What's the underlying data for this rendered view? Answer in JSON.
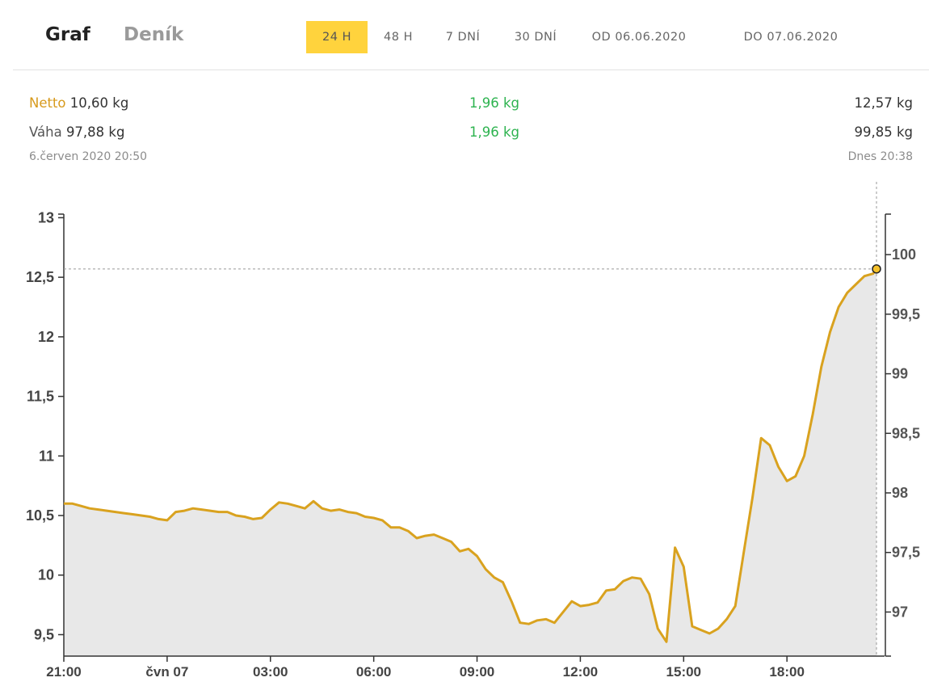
{
  "tabs": {
    "graf": "Graf",
    "denik": "Deník"
  },
  "ranges": [
    {
      "label": "24 H",
      "active": true
    },
    {
      "label": "48 H",
      "active": false
    },
    {
      "label": "7 DNÍ",
      "active": false
    },
    {
      "label": "30 DNÍ",
      "active": false
    },
    {
      "label": "OD 06.06.2020",
      "active": false
    },
    {
      "label": "DO 07.06.2020",
      "active": false
    }
  ],
  "stats": {
    "netto": {
      "label": "Netto",
      "start": "10,60 kg",
      "change": "1,96 kg",
      "end": "12,57 kg"
    },
    "vaha": {
      "label": "Váha",
      "start": "97,88 kg",
      "change": "1,96 kg",
      "end": "99,85 kg"
    },
    "start_time": "6.červen 2020 20:50",
    "end_time": "Dnes 20:38"
  },
  "colors": {
    "line": "#d9a21f",
    "area": "#e8e8e8",
    "change": "#2db34f",
    "active_tab": "#ffd33d"
  },
  "chart_data": {
    "type": "area",
    "x_unit": "hours since 21:00 (6.6.2020)",
    "x_ticks": [
      {
        "x": 0,
        "label": "21:00"
      },
      {
        "x": 3,
        "label": "čvn 07"
      },
      {
        "x": 6,
        "label": "03:00"
      },
      {
        "x": 9,
        "label": "06:00"
      },
      {
        "x": 12,
        "label": "09:00"
      },
      {
        "x": 15,
        "label": "12:00"
      },
      {
        "x": 18,
        "label": "15:00"
      },
      {
        "x": 21,
        "label": "18:00"
      }
    ],
    "xlim": [
      0,
      23.6
    ],
    "y_left": {
      "lim": [
        9.32,
        13.03
      ],
      "ticks": [
        9.5,
        10,
        10.5,
        11,
        11.5,
        12,
        12.5,
        13
      ],
      "labels": [
        "9,5",
        "10",
        "10,5",
        "11",
        "11,5",
        "12",
        "12,5",
        "13"
      ]
    },
    "y_right": {
      "lim": [
        96.63,
        100.34
      ],
      "ticks": [
        97,
        97.5,
        98,
        98.5,
        99,
        99.5,
        100
      ],
      "labels": [
        "97",
        "97,5",
        "98",
        "98,5",
        "99",
        "99,5",
        "100"
      ]
    },
    "marker": {
      "x": 23.6,
      "y": 12.57
    },
    "series": [
      {
        "values": [
          [
            0.0,
            10.6
          ],
          [
            0.25,
            10.6
          ],
          [
            0.5,
            10.58
          ],
          [
            0.75,
            10.56
          ],
          [
            1.0,
            10.55
          ],
          [
            1.25,
            10.54
          ],
          [
            1.5,
            10.53
          ],
          [
            1.75,
            10.52
          ],
          [
            2.0,
            10.51
          ],
          [
            2.25,
            10.5
          ],
          [
            2.5,
            10.49
          ],
          [
            2.75,
            10.47
          ],
          [
            3.0,
            10.46
          ],
          [
            3.25,
            10.53
          ],
          [
            3.5,
            10.54
          ],
          [
            3.75,
            10.56
          ],
          [
            4.0,
            10.55
          ],
          [
            4.25,
            10.54
          ],
          [
            4.5,
            10.53
          ],
          [
            4.75,
            10.53
          ],
          [
            5.0,
            10.5
          ],
          [
            5.25,
            10.49
          ],
          [
            5.5,
            10.47
          ],
          [
            5.75,
            10.48
          ],
          [
            6.0,
            10.55
          ],
          [
            6.25,
            10.61
          ],
          [
            6.5,
            10.6
          ],
          [
            6.75,
            10.58
          ],
          [
            7.0,
            10.56
          ],
          [
            7.25,
            10.62
          ],
          [
            7.5,
            10.56
          ],
          [
            7.75,
            10.54
          ],
          [
            8.0,
            10.55
          ],
          [
            8.25,
            10.53
          ],
          [
            8.5,
            10.52
          ],
          [
            8.75,
            10.49
          ],
          [
            9.0,
            10.48
          ],
          [
            9.25,
            10.46
          ],
          [
            9.5,
            10.4
          ],
          [
            9.75,
            10.4
          ],
          [
            10.0,
            10.37
          ],
          [
            10.25,
            10.31
          ],
          [
            10.5,
            10.33
          ],
          [
            10.75,
            10.34
          ],
          [
            11.0,
            10.31
          ],
          [
            11.25,
            10.28
          ],
          [
            11.5,
            10.2
          ],
          [
            11.75,
            10.22
          ],
          [
            12.0,
            10.16
          ],
          [
            12.25,
            10.05
          ],
          [
            12.5,
            9.98
          ],
          [
            12.75,
            9.94
          ],
          [
            13.0,
            9.78
          ],
          [
            13.25,
            9.6
          ],
          [
            13.5,
            9.59
          ],
          [
            13.75,
            9.62
          ],
          [
            14.0,
            9.63
          ],
          [
            14.25,
            9.6
          ],
          [
            14.5,
            9.69
          ],
          [
            14.75,
            9.78
          ],
          [
            15.0,
            9.74
          ],
          [
            15.25,
            9.75
          ],
          [
            15.5,
            9.77
          ],
          [
            15.75,
            9.87
          ],
          [
            16.0,
            9.88
          ],
          [
            16.25,
            9.95
          ],
          [
            16.5,
            9.98
          ],
          [
            16.75,
            9.97
          ],
          [
            17.0,
            9.84
          ],
          [
            17.25,
            9.55
          ],
          [
            17.5,
            9.44
          ],
          [
            17.75,
            10.23
          ],
          [
            18.0,
            10.07
          ],
          [
            18.25,
            9.57
          ],
          [
            18.5,
            9.54
          ],
          [
            18.75,
            9.51
          ],
          [
            19.0,
            9.55
          ],
          [
            19.25,
            9.63
          ],
          [
            19.5,
            9.74
          ],
          [
            19.75,
            10.2
          ],
          [
            20.0,
            10.65
          ],
          [
            20.25,
            11.15
          ],
          [
            20.5,
            11.09
          ],
          [
            20.75,
            10.91
          ],
          [
            21.0,
            10.79
          ],
          [
            21.25,
            10.83
          ],
          [
            21.5,
            11.0
          ],
          [
            21.75,
            11.35
          ],
          [
            22.0,
            11.75
          ],
          [
            22.25,
            12.04
          ],
          [
            22.5,
            12.25
          ],
          [
            22.75,
            12.37
          ],
          [
            23.0,
            12.44
          ],
          [
            23.25,
            12.51
          ],
          [
            23.5,
            12.53
          ],
          [
            23.6,
            12.57
          ]
        ]
      }
    ]
  }
}
